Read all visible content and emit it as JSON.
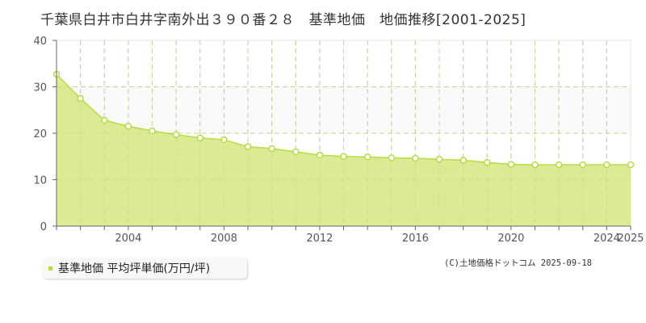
{
  "title": "千葉県白井市白井字南外出３９０番２８　基準地価　地価推移[2001-2025]",
  "colors": {
    "area_fill": "#dbeb94",
    "line": "#b7dc3f",
    "marker_fill": "#ffffff",
    "band": "#fafafa",
    "grid": "#cccccc",
    "axis": "#666666"
  },
  "legend": {
    "label": "基準地価 平均坪単価(万円/坪)",
    "swatch_color": "#b7dc3f"
  },
  "copyright": "(C)土地価格ドットコム 2025-09-18",
  "chart_data": {
    "type": "area",
    "title": "千葉県白井市白井字南外出３９０番２８　基準地価　地価推移[2001-2025]",
    "xlabel": "",
    "ylabel": "",
    "ylim": [
      0,
      40
    ],
    "yticks": [
      0,
      10,
      20,
      30,
      40
    ],
    "xtick_labels": [
      "2004",
      "2008",
      "2012",
      "2016",
      "2020",
      "2024",
      "2025"
    ],
    "grid": true,
    "legend_position": "bottom-left",
    "series": [
      {
        "name": "基準地価 平均坪単価(万円/坪)",
        "x": [
          2001,
          2002,
          2003,
          2004,
          2005,
          2006,
          2007,
          2008,
          2009,
          2010,
          2011,
          2012,
          2013,
          2014,
          2015,
          2016,
          2017,
          2018,
          2019,
          2020,
          2021,
          2022,
          2023,
          2024,
          2025
        ],
        "values": [
          32.7,
          27.5,
          22.8,
          21.5,
          20.5,
          19.7,
          19.0,
          18.6,
          17.1,
          16.7,
          16.0,
          15.3,
          15.0,
          14.9,
          14.7,
          14.6,
          14.4,
          14.2,
          13.7,
          13.3,
          13.2,
          13.2,
          13.2,
          13.2,
          13.2
        ]
      }
    ]
  }
}
